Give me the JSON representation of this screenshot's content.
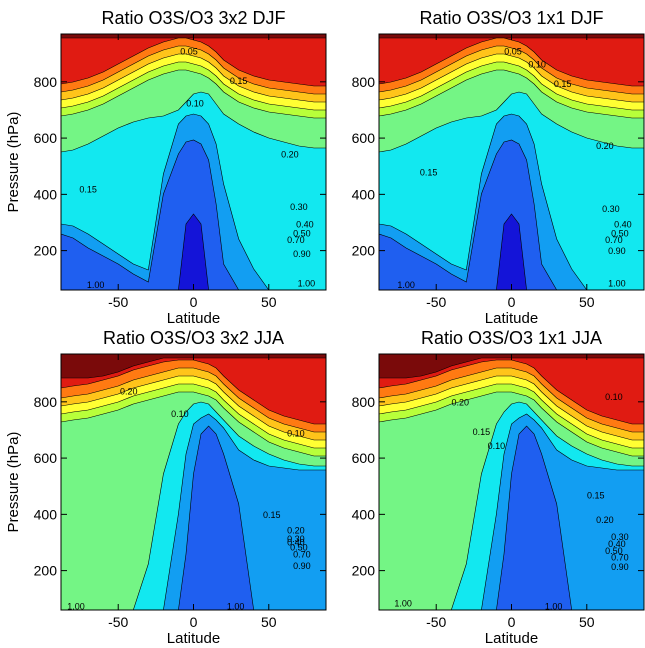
{
  "chart_data": [
    {
      "type": "contour",
      "title": "Ratio O3S/O3 3x2 DJF",
      "xlabel": "Latitude",
      "ylabel": "Pressure (hPa)",
      "xlim": [
        -88,
        88
      ],
      "ylim": [
        970,
        60
      ],
      "xticks": [
        -50,
        0,
        50
      ],
      "yticks": [
        200,
        400,
        600,
        800
      ],
      "contour_levels": [
        0.05,
        0.1,
        0.15,
        0.2,
        0.3,
        0.4,
        0.5,
        0.7,
        0.9,
        1.0
      ],
      "contour_labels": [
        {
          "text": "1.00",
          "x": -65,
          "y": 75
        },
        {
          "text": "1.00",
          "x": 75,
          "y": 80
        },
        {
          "text": "0.90",
          "x": 72,
          "y": 186
        },
        {
          "text": "0.70",
          "x": 68,
          "y": 236
        },
        {
          "text": "0.50",
          "x": 72,
          "y": 258
        },
        {
          "text": "0.40",
          "x": 74,
          "y": 290
        },
        {
          "text": "0.30",
          "x": 70,
          "y": 352
        },
        {
          "text": "0.15",
          "x": -70,
          "y": 415
        },
        {
          "text": "0.20",
          "x": 64,
          "y": 540
        },
        {
          "text": "0.10",
          "x": 1,
          "y": 720
        },
        {
          "text": "0.15",
          "x": 30,
          "y": 800
        },
        {
          "text": "0.05",
          "x": -3,
          "y": 905
        }
      ]
    },
    {
      "type": "contour",
      "title": "Ratio O3S/O3 1x1 DJF",
      "xlabel": "Latitude",
      "ylabel": "",
      "xlim": [
        -88,
        88
      ],
      "ylim": [
        970,
        60
      ],
      "xticks": [
        -50,
        0,
        50
      ],
      "yticks": [
        200,
        400,
        600,
        800
      ],
      "contour_levels": [
        0.05,
        0.1,
        0.15,
        0.2,
        0.3,
        0.4,
        0.5,
        0.7,
        0.9,
        1.0
      ],
      "contour_labels": [
        {
          "text": "1.00",
          "x": -70,
          "y": 75
        },
        {
          "text": "1.00",
          "x": 70,
          "y": 80
        },
        {
          "text": "0.90",
          "x": 70,
          "y": 196
        },
        {
          "text": "0.70",
          "x": 68,
          "y": 236
        },
        {
          "text": "0.50",
          "x": 72,
          "y": 258
        },
        {
          "text": "0.40",
          "x": 74,
          "y": 290
        },
        {
          "text": "0.30",
          "x": 66,
          "y": 345
        },
        {
          "text": "0.15",
          "x": -55,
          "y": 475
        },
        {
          "text": "0.20",
          "x": 62,
          "y": 570
        },
        {
          "text": "0.15",
          "x": 34,
          "y": 790
        },
        {
          "text": "0.10",
          "x": 17,
          "y": 860
        },
        {
          "text": "0.05",
          "x": 1,
          "y": 905
        }
      ]
    },
    {
      "type": "contour",
      "title": "Ratio O3S/O3 3x2 JJA",
      "xlabel": "Latitude",
      "ylabel": "Pressure (hPa)",
      "xlim": [
        -88,
        88
      ],
      "ylim": [
        970,
        60
      ],
      "xticks": [
        -50,
        0,
        50
      ],
      "yticks": [
        200,
        400,
        600,
        800
      ],
      "contour_levels": [
        0.1,
        0.15,
        0.2,
        0.3,
        0.4,
        0.5,
        0.7,
        0.9,
        1.0
      ],
      "contour_labels": [
        {
          "text": "1.00",
          "x": -78,
          "y": 70
        },
        {
          "text": "1.00",
          "x": 28,
          "y": 70
        },
        {
          "text": "0.90",
          "x": 72,
          "y": 215
        },
        {
          "text": "0.70",
          "x": 72,
          "y": 255
        },
        {
          "text": "0.50",
          "x": 70,
          "y": 280
        },
        {
          "text": "0.40",
          "x": 68,
          "y": 298
        },
        {
          "text": "0.30",
          "x": 68,
          "y": 310
        },
        {
          "text": "0.20",
          "x": 68,
          "y": 340
        },
        {
          "text": "0.15",
          "x": 52,
          "y": 395
        },
        {
          "text": "0.10",
          "x": 68,
          "y": 685
        },
        {
          "text": "0.10",
          "x": -9,
          "y": 755
        },
        {
          "text": "0.20",
          "x": -43,
          "y": 835
        }
      ]
    },
    {
      "type": "contour",
      "title": "Ratio O3S/O3 1x1 JJA",
      "xlabel": "Latitude",
      "ylabel": "",
      "xlim": [
        -88,
        88
      ],
      "ylim": [
        970,
        60
      ],
      "xticks": [
        -50,
        0,
        50
      ],
      "yticks": [
        200,
        400,
        600,
        800
      ],
      "contour_levels": [
        0.1,
        0.15,
        0.2,
        0.3,
        0.4,
        0.5,
        0.7,
        0.9,
        1.0
      ],
      "contour_labels": [
        {
          "text": "1.00",
          "x": -72,
          "y": 80
        },
        {
          "text": "1.00",
          "x": 28,
          "y": 70
        },
        {
          "text": "0.90",
          "x": 72,
          "y": 210
        },
        {
          "text": "0.70",
          "x": 72,
          "y": 245
        },
        {
          "text": "0.50",
          "x": 68,
          "y": 268
        },
        {
          "text": "0.40",
          "x": 70,
          "y": 292
        },
        {
          "text": "0.30",
          "x": 72,
          "y": 318
        },
        {
          "text": "0.20",
          "x": 62,
          "y": 378
        },
        {
          "text": "0.15",
          "x": 56,
          "y": 465
        },
        {
          "text": "0.10",
          "x": -10,
          "y": 640
        },
        {
          "text": "0.15",
          "x": -20,
          "y": 690
        },
        {
          "text": "0.20",
          "x": -34,
          "y": 795
        },
        {
          "text": "0.10",
          "x": 68,
          "y": 815
        }
      ]
    }
  ],
  "colors": {
    "above_1.00": "#7a0a0a",
    "0.90-1.00": "#e01b12",
    "0.70-0.90": "#ff7a12",
    "0.50-0.70": "#ffc41a",
    "0.40-0.50": "#ffff33",
    "0.30-0.40": "#b8ff3a",
    "0.20-0.30": "#74f585",
    "0.15-0.20": "#12e8f0",
    "0.10-0.15": "#129ef2",
    "0.05-0.10": "#1f5ff0",
    "below_0.05": "#1414d8"
  }
}
